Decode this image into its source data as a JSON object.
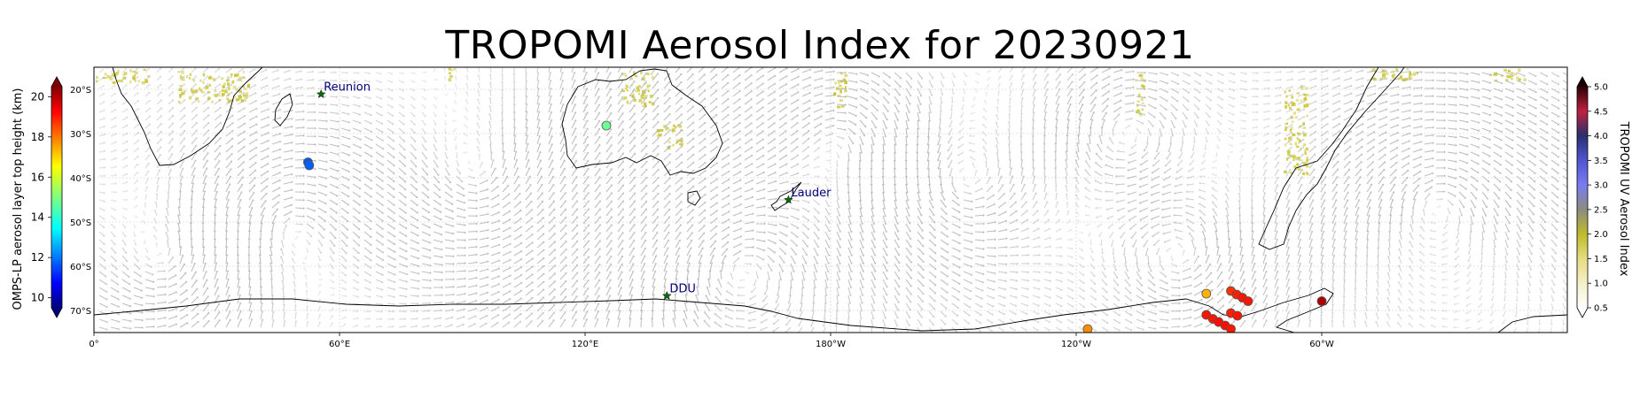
{
  "title": "TROPOMI Aerosol Index for 20230921",
  "map": {
    "projection": "PlateCarree (central longitude 180)",
    "extent_lon": [
      0,
      360
    ],
    "extent_lat": [
      -75,
      -15
    ],
    "lon_ticks": [
      "0°",
      "60°E",
      "120°E",
      "180°W",
      "120°W",
      "60°W"
    ],
    "lon_tick_values": [
      0,
      60,
      120,
      180,
      240,
      300
    ],
    "lat_ticks": [
      "20°S",
      "30°S",
      "40°S",
      "50°S",
      "60°S",
      "70°S"
    ],
    "lat_tick_values": [
      -20,
      -30,
      -40,
      -50,
      -60,
      -70
    ],
    "gridlines": true
  },
  "stations": [
    {
      "name": "Reunion",
      "lon": 55.5,
      "lat": -21.1
    },
    {
      "name": "Lauder",
      "lon": 169.7,
      "lat": -45.0
    },
    {
      "name": "DDU",
      "lon": 140.0,
      "lat": -66.7
    }
  ],
  "omps_points": [
    {
      "lon": 52.3,
      "lat": -36.5,
      "height": 11.8
    },
    {
      "lon": 52.6,
      "lat": -37.2,
      "height": 11.9
    },
    {
      "lon": 125.2,
      "lat": -28.2,
      "height": 14.8
    },
    {
      "lon": 271.8,
      "lat": -66.2,
      "height": 17.2
    },
    {
      "lon": 277.8,
      "lat": -65.6,
      "height": 18.6
    },
    {
      "lon": 279.2,
      "lat": -66.4,
      "height": 18.8
    },
    {
      "lon": 280.6,
      "lat": -67.1,
      "height": 18.9
    },
    {
      "lon": 282.0,
      "lat": -67.9,
      "height": 18.9
    },
    {
      "lon": 277.8,
      "lat": -70.6,
      "height": 18.8
    },
    {
      "lon": 279.4,
      "lat": -71.2,
      "height": 18.9
    },
    {
      "lon": 271.8,
      "lat": -71.0,
      "height": 18.9
    },
    {
      "lon": 273.4,
      "lat": -71.9,
      "height": 18.9
    },
    {
      "lon": 274.8,
      "lat": -72.6,
      "height": 19.0
    },
    {
      "lon": 276.4,
      "lat": -73.4,
      "height": 19.0
    },
    {
      "lon": 277.8,
      "lat": -74.2,
      "height": 18.9
    },
    {
      "lon": 300.0,
      "lat": -67.9,
      "height": 20.0
    },
    {
      "lon": 242.8,
      "lat": -74.2,
      "height": 17.6
    }
  ],
  "left_colorbar": {
    "label": "OMPS-LP aerosol layer top height (km)",
    "range": [
      9.5,
      20.5
    ],
    "ticks": [
      "10",
      "12",
      "14",
      "16",
      "18",
      "20"
    ],
    "tick_values": [
      10,
      12,
      14,
      16,
      18,
      20
    ],
    "colormap": "jet"
  },
  "right_colorbar": {
    "label": "TROPOMI UV Aerosol Index",
    "range": [
      0.5,
      5.0
    ],
    "ticks": [
      "0.5",
      "1.0",
      "1.5",
      "2.0",
      "2.5",
      "3.0",
      "3.5",
      "4.0",
      "4.5",
      "5.0"
    ],
    "tick_values": [
      0.5,
      1.0,
      1.5,
      2.0,
      2.5,
      3.0,
      3.5,
      4.0,
      4.5,
      5.0
    ],
    "colors": [
      "#ffffff",
      "#f4f0c8",
      "#e6dc82",
      "#bfbb2a",
      "#8c8c80",
      "#7b7bf2",
      "#4e56d0",
      "#2a2f6e",
      "#c02040",
      "#2a0008"
    ]
  },
  "colors": {
    "coastline": "#000000",
    "gridline": "#c8c8c8",
    "wind_arrow": "#b4b4b4",
    "aerosol_plume": "#c9c530",
    "station_marker": "#0b6b0b",
    "station_label": "#00007a"
  }
}
